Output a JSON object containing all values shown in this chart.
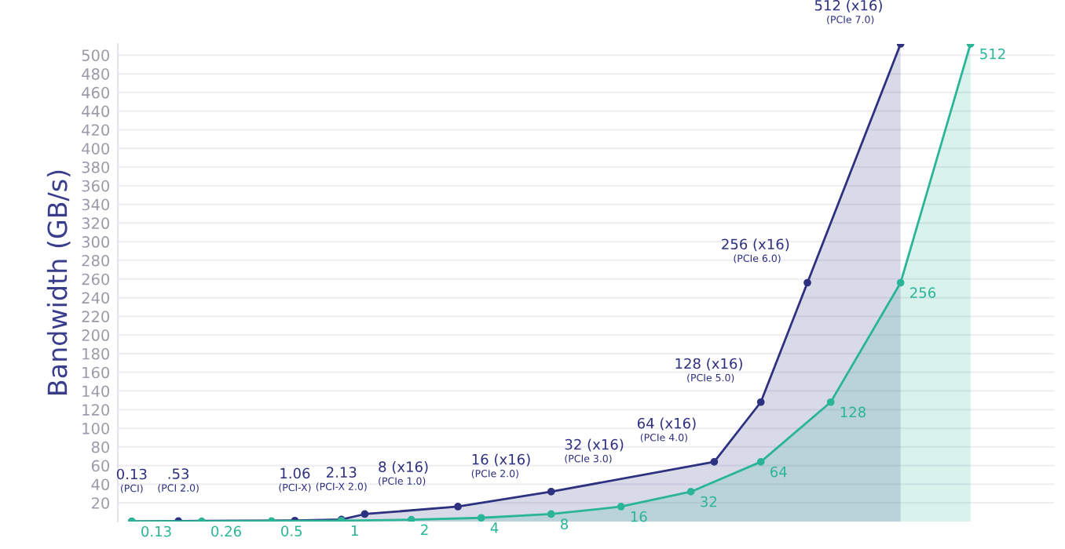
{
  "chart_data": {
    "type": "area",
    "ylabel": "Bandwidth (GB/s)",
    "categories": [
      null,
      null,
      null,
      null,
      null,
      null,
      null,
      null,
      null,
      null,
      null,
      null,
      null,
      null,
      null,
      null,
      null,
      null,
      null,
      null,
      null,
      null,
      null,
      null,
      null,
      null,
      null,
      null,
      null,
      null,
      null,
      null,
      null,
      null,
      null,
      null,
      null
    ],
    "series": [
      {
        "color": "#2e3080",
        "values": [
          0.13,
          null,
          0.53,
          null,
          null,
          null,
          null,
          1.06,
          null,
          2.13,
          8,
          null,
          null,
          null,
          16,
          null,
          null,
          null,
          32,
          null,
          null,
          null,
          null,
          null,
          null,
          64,
          null,
          128,
          null,
          256,
          null,
          null,
          null,
          512,
          null,
          null,
          null
        ],
        "value_labels": [
          "0.13\n(PCI)",
          null,
          ".53\n(PCI 2.0)",
          null,
          null,
          null,
          null,
          "1.06\n(PCI-X)",
          null,
          "2.13\n(PCI-X 2.0)",
          "8 (x16)\n(PCIe 1.0)",
          null,
          null,
          null,
          "16 (x16)\n(PCIe 2.0)",
          null,
          null,
          null,
          "32 (x16)\n(PCIe 3.0)",
          null,
          null,
          null,
          null,
          null,
          null,
          "64 (x16)\n(PCIe 4.0)",
          null,
          "128 (x16)\n(PCIe 5.0)",
          null,
          "256 (x16)\n(PCIe 6.0)",
          null,
          null,
          null,
          "512 (x16)\n(PCIe 7.0)",
          null,
          null,
          null
        ]
      },
      {
        "color": "#2bb598",
        "values": [
          0.13,
          null,
          null,
          0.26,
          null,
          null,
          0.5,
          null,
          null,
          1,
          null,
          null,
          2,
          null,
          null,
          4,
          null,
          null,
          8,
          null,
          null,
          16,
          null,
          null,
          32,
          null,
          null,
          64,
          null,
          null,
          128,
          null,
          null,
          256,
          null,
          null,
          512
        ],
        "value_labels": [
          "0.13",
          null,
          null,
          "0.26",
          null,
          null,
          "0.5",
          null,
          null,
          "1",
          null,
          null,
          "2",
          null,
          null,
          "4",
          null,
          null,
          "8",
          null,
          null,
          "16",
          null,
          null,
          "32",
          null,
          null,
          "64",
          null,
          null,
          "128",
          null,
          null,
          "256",
          null,
          null,
          "512"
        ]
      }
    ],
    "ylim": [
      0,
      512
    ],
    "yticks": [
      20,
      40,
      60,
      80,
      100,
      120,
      140,
      160,
      180,
      200,
      220,
      240,
      260,
      280,
      300,
      320,
      340,
      360,
      380,
      400,
      420,
      440,
      460,
      480,
      500
    ],
    "grid": "y",
    "tick_labels": "y",
    "marker": "circle"
  }
}
